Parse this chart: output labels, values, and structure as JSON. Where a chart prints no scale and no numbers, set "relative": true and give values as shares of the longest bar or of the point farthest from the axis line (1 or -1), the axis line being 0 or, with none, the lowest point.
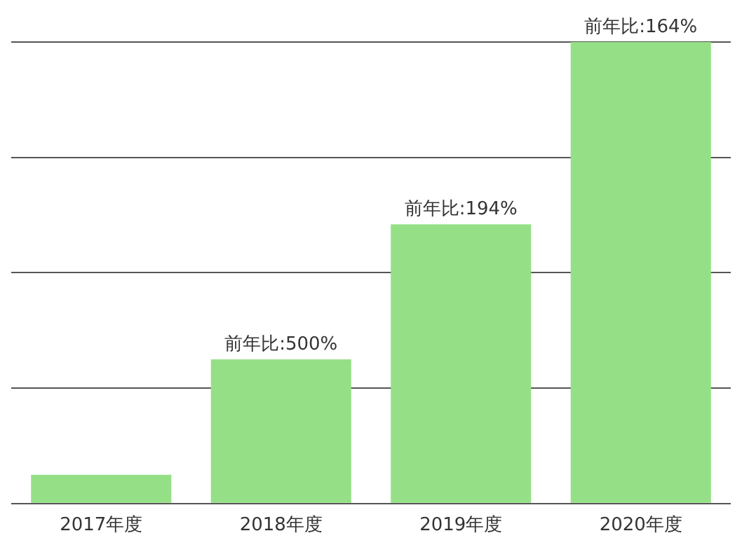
{
  "chart_data": {
    "type": "bar",
    "relative": true,
    "categories": [
      "2017年度",
      "2018年度",
      "2019年度",
      "2020年度"
    ],
    "values": [
      0.0625,
      0.3125,
      0.605,
      1
    ],
    "annotations": [
      {
        "text": "前年比:500%",
        "x": "2018年度",
        "y": 0.3125
      },
      {
        "text": "前年比:194%",
        "x": "2019年度",
        "y": 0.605
      },
      {
        "text": "前年比:164%",
        "x": "2020年度",
        "y": 1
      }
    ],
    "color": "#95e086",
    "grid": "y",
    "legend": false
  }
}
